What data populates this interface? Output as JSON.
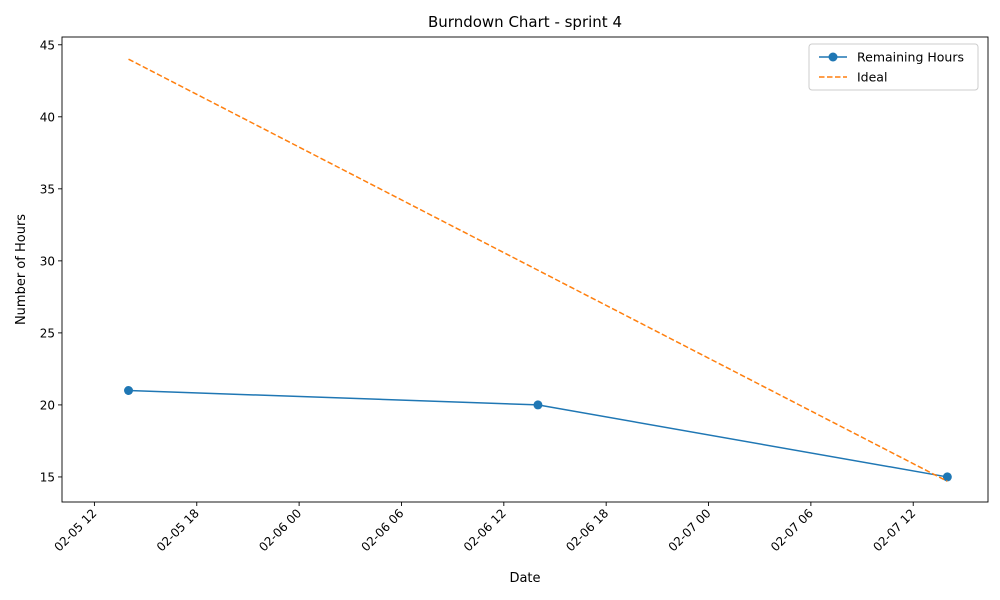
{
  "chart_data": {
    "type": "line",
    "title": "Burndown Chart - sprint 4",
    "xlabel": "Date",
    "ylabel": "Number of Hours",
    "x_axis_type": "date",
    "xlim": [
      "2025-02-05 10:06",
      "2025-02-07 16:23"
    ],
    "ylim": [
      13.26,
      45.54
    ],
    "x_ticks": [
      {
        "value": "2025-02-05 12:00",
        "label": "02-05 12"
      },
      {
        "value": "2025-02-05 18:00",
        "label": "02-05 18"
      },
      {
        "value": "2025-02-06 00:00",
        "label": "02-06 00"
      },
      {
        "value": "2025-02-06 06:00",
        "label": "02-06 06"
      },
      {
        "value": "2025-02-06 12:00",
        "label": "02-06 12"
      },
      {
        "value": "2025-02-06 18:00",
        "label": "02-06 18"
      },
      {
        "value": "2025-02-07 00:00",
        "label": "02-07 00"
      },
      {
        "value": "2025-02-07 06:00",
        "label": "02-07 06"
      },
      {
        "value": "2025-02-07 12:00",
        "label": "02-07 12"
      }
    ],
    "y_ticks": [
      15,
      20,
      25,
      30,
      35,
      40,
      45
    ],
    "grid": false,
    "legend_position": "top-right",
    "series": [
      {
        "name": "Remaining Hours",
        "color": "#1f77b4",
        "line_style": "solid",
        "marker": "circle",
        "x": [
          "2025-02-05 14:00",
          "2025-02-06 14:00",
          "2025-02-07 14:00"
        ],
        "y": [
          21,
          20,
          15
        ]
      },
      {
        "name": "Ideal",
        "color": "#ff7f0e",
        "line_style": "dashed",
        "marker": "none",
        "x": [
          "2025-02-05 14:00",
          "2025-02-07 14:00"
        ],
        "y": [
          44,
          14.7
        ]
      }
    ]
  }
}
